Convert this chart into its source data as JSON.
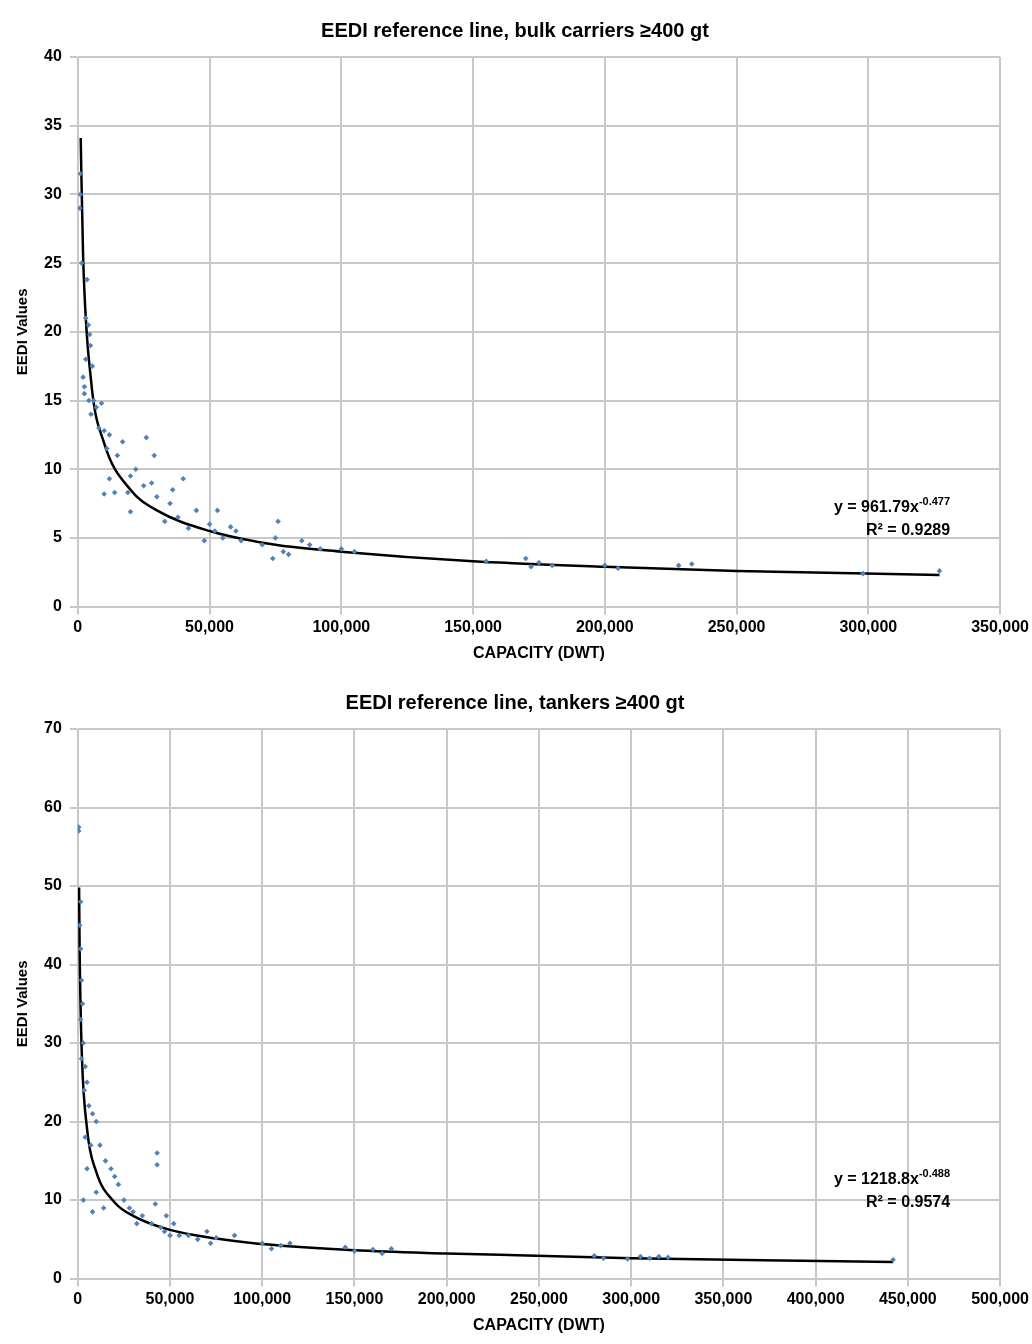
{
  "chart_data": [
    {
      "type": "scatter",
      "title": "EEDI reference line, bulk carriers ≥400 gt",
      "xlabel": "CAPACITY (DWT)",
      "ylabel": "EEDI Values",
      "xlim": [
        0,
        350000
      ],
      "xticks": [
        0,
        {
          "value": 50000,
          "label": "50,000"
        },
        {
          "value": 100000,
          "label": "100,000"
        },
        {
          "value": 150000,
          "label": "150,000"
        },
        {
          "value": 200000,
          "label": "200,000"
        },
        {
          "value": 250000,
          "label": "250,000"
        },
        {
          "value": 300000,
          "label": "300,000"
        },
        {
          "value": 350000,
          "label": "350,000"
        }
      ],
      "ylim": [
        0,
        40
      ],
      "yticks": [
        0,
        5,
        10,
        15,
        20,
        25,
        30,
        35,
        40
      ],
      "grid": true,
      "legend": false,
      "annotations": [
        "y = 961.79x$^{-0.477}$",
        "R² = 0.9289"
      ],
      "series": [
        {
          "type": "scatter",
          "marker": "diamond",
          "color": "#4f81bd",
          "x": [
            1000,
            1000,
            800,
            1500,
            3500,
            3000,
            4000,
            4500,
            4800,
            3000,
            5500,
            2000,
            2500,
            2500,
            4200,
            6000,
            7000,
            9000,
            5000,
            8000,
            10000,
            12000,
            11000,
            15000,
            17000,
            20000,
            22000,
            12000,
            10000,
            14000,
            19000,
            25000,
            29000,
            26000,
            28000,
            30000,
            35000,
            38000,
            36000,
            40000,
            45000,
            33000,
            20000,
            42000,
            50000,
            52000,
            55000,
            48000,
            58000,
            60000,
            53000,
            62000,
            70000,
            75000,
            74000,
            76000,
            78000,
            80000,
            85000,
            88000,
            92000,
            100000,
            105000,
            155000,
            170000,
            172000,
            175000,
            180000,
            200000,
            205000,
            228000,
            233000,
            298000,
            327000
          ],
          "values": [
            31.5,
            30,
            29,
            25,
            23.8,
            21,
            20.5,
            19.8,
            19,
            18,
            17.5,
            16.7,
            16,
            15.5,
            15,
            15,
            14.5,
            14.8,
            14,
            13,
            12.8,
            12.5,
            11.5,
            11,
            12,
            9.5,
            10,
            9.3,
            8.2,
            8.3,
            8.3,
            8.8,
            11,
            12.3,
            9,
            8,
            7.5,
            6.5,
            8.5,
            9.3,
            7,
            6.2,
            6.9,
            5.7,
            6,
            5.5,
            5,
            4.8,
            5.8,
            5.5,
            7,
            4.8,
            4.5,
            5,
            3.5,
            6.2,
            4,
            3.8,
            4.8,
            4.5,
            4.2,
            4.2,
            4,
            3.3,
            3.5,
            2.9,
            3.2,
            3,
            3,
            2.8,
            3,
            3.1,
            2.4,
            2.6
          ]
        },
        {
          "type": "line",
          "marker": "none",
          "color": "#000000",
          "x": [
            1100,
            2000,
            5000,
            10000,
            20000,
            30000,
            50000,
            75000,
            100000,
            150000,
            200000,
            250000,
            327000
          ],
          "values": [
            34.1,
            25.6,
            16.5,
            11.9,
            8.5,
            7,
            5.5,
            4.5,
            4,
            3.3,
            2.9,
            2.6,
            2.3
          ]
        }
      ]
    },
    {
      "type": "scatter",
      "title": "EEDI reference line, tankers ≥400 gt",
      "xlabel": "CAPACITY (DWT)",
      "ylabel": "EEDI Values",
      "xlim": [
        0,
        500000
      ],
      "xticks": [
        0,
        {
          "value": 50000,
          "label": "50,000"
        },
        {
          "value": 100000,
          "label": "100,000"
        },
        {
          "value": 150000,
          "label": "150,000"
        },
        {
          "value": 200000,
          "label": "200,000"
        },
        {
          "value": 250000,
          "label": "250,000"
        },
        {
          "value": 300000,
          "label": "300,000"
        },
        {
          "value": 350000,
          "label": "350,000"
        },
        {
          "value": 400000,
          "label": "400,000"
        },
        {
          "value": 450000,
          "label": "450,000"
        },
        {
          "value": 500000,
          "label": "500,000"
        }
      ],
      "ylim": [
        0,
        70
      ],
      "yticks": [
        0,
        10,
        20,
        30,
        40,
        50,
        60,
        70
      ],
      "grid": true,
      "legend": false,
      "annotations": [
        "y = 1218.8x$^{-0.488}$",
        "R² = 0.9574"
      ],
      "series": [
        {
          "type": "scatter",
          "marker": "diamond",
          "color": "#4f81bd",
          "x": [
            500,
            500,
            1500,
            1000,
            1500,
            2000,
            2500,
            1500,
            3000,
            2000,
            4000,
            5000,
            3500,
            6000,
            8000,
            10000,
            4000,
            7000,
            12000,
            15000,
            5000,
            18000,
            20000,
            22000,
            10000,
            3000,
            14000,
            8000,
            25000,
            28000,
            30000,
            32000,
            35000,
            40000,
            42000,
            43000,
            43000,
            45000,
            47000,
            50000,
            48000,
            52000,
            55000,
            60000,
            65000,
            70000,
            72000,
            75000,
            85000,
            100000,
            105000,
            110000,
            115000,
            145000,
            150000,
            160000,
            165000,
            170000,
            280000,
            285000,
            298000,
            305000,
            310000,
            315000,
            320000,
            442000
          ],
          "values": [
            57.5,
            57,
            48,
            45,
            42,
            38,
            35,
            33,
            30,
            28,
            27,
            25,
            24,
            22,
            21,
            20,
            18,
            17,
            17,
            15,
            14,
            14,
            13,
            12,
            11,
            10,
            9,
            8.5,
            10,
            9,
            8.5,
            7,
            8,
            7,
            9.5,
            16,
            14.5,
            6.5,
            6,
            5.5,
            8,
            7,
            5.5,
            5.5,
            5,
            6,
            4.5,
            5.2,
            5.5,
            4.5,
            3.8,
            4.2,
            4.5,
            4,
            3.5,
            3.7,
            3.2,
            3.8,
            2.9,
            2.6,
            2.5,
            2.8,
            2.6,
            2.8,
            2.7,
            2.4
          ]
        },
        {
          "type": "line",
          "marker": "none",
          "color": "#000000",
          "x": [
            700,
            1000,
            2000,
            5000,
            10000,
            20000,
            30000,
            50000,
            75000,
            100000,
            150000,
            200000,
            300000,
            442000
          ],
          "values": [
            49.8,
            41.9,
            29.9,
            19.1,
            13.6,
            9.7,
            8,
            6.2,
            5.1,
            4.4,
            3.6,
            3.2,
            2.6,
            2.1
          ]
        }
      ]
    }
  ]
}
